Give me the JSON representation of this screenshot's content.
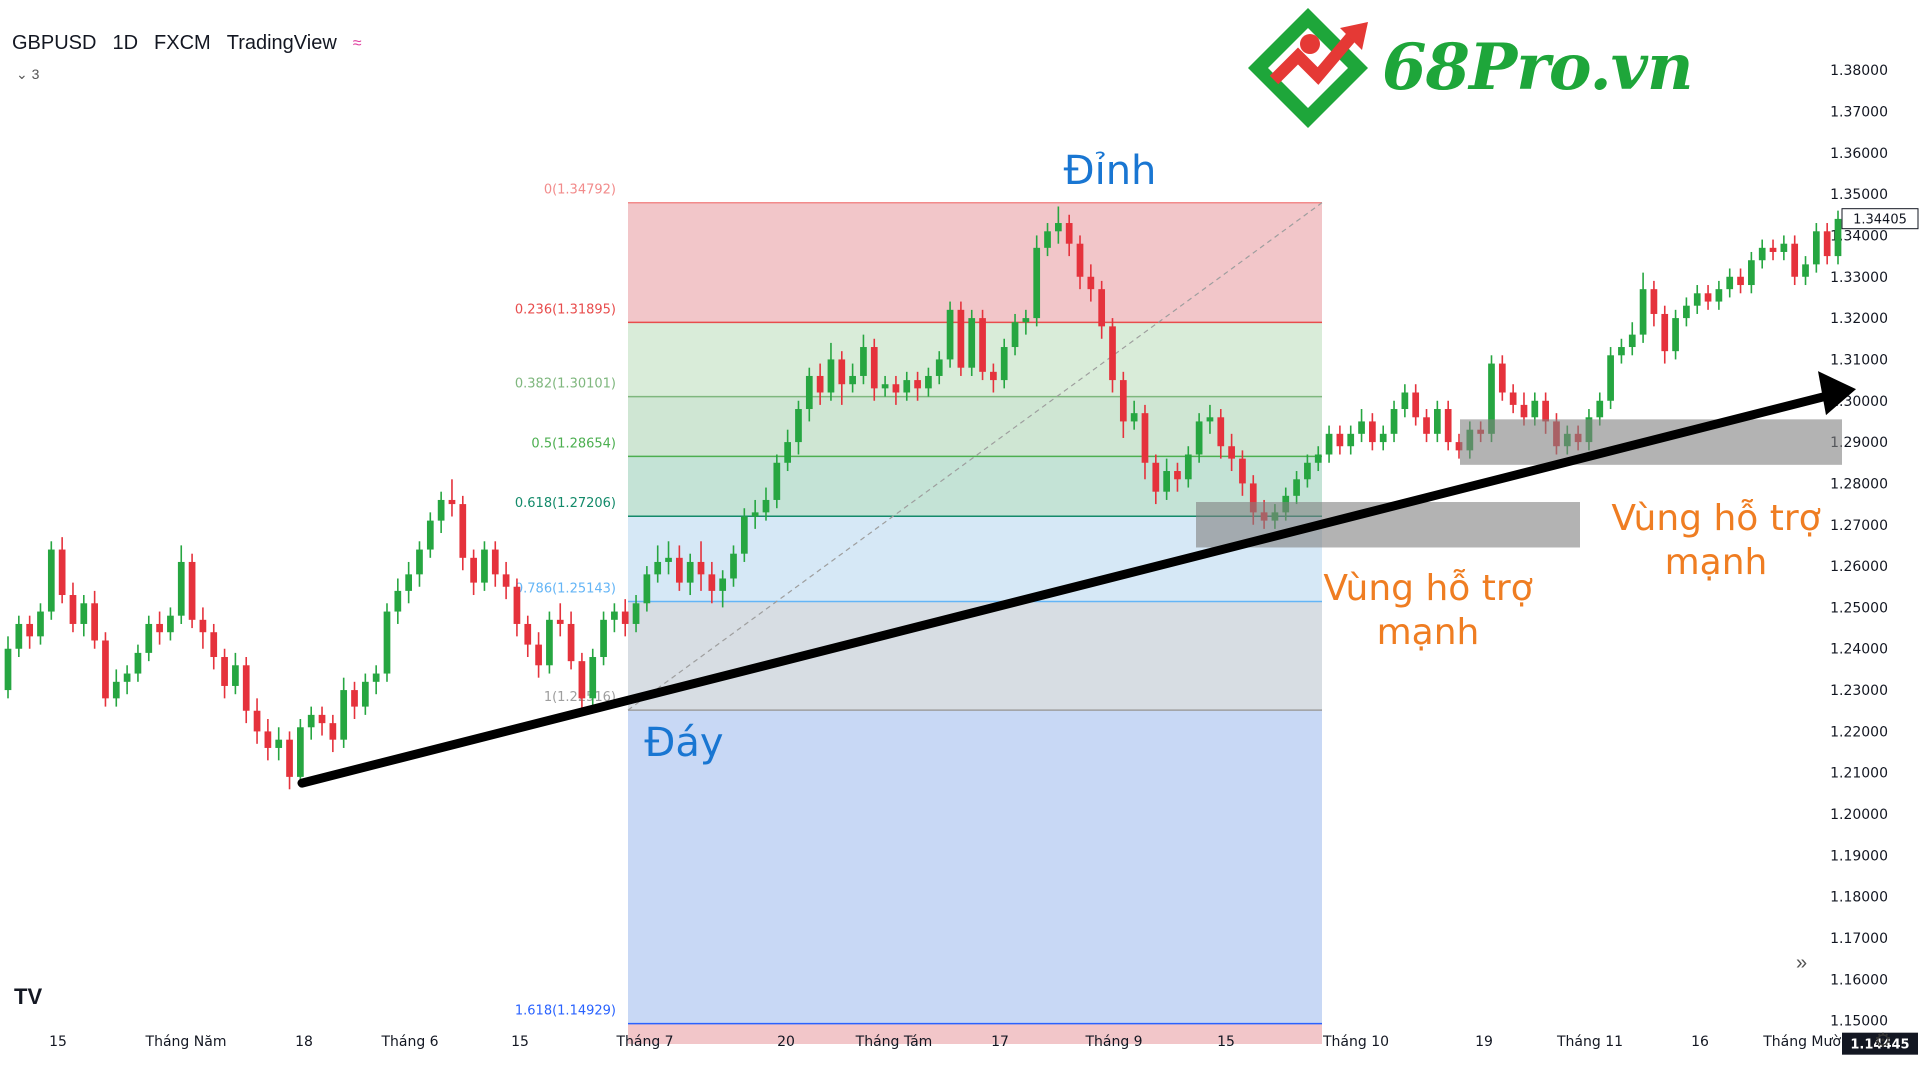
{
  "header": {
    "symbol": "GBPUSD",
    "interval": "1D",
    "broker": "FXCM",
    "source": "TradingView",
    "wave_icon": "≈",
    "indicators_count": "3"
  },
  "logo": {
    "text": "68Pro.vn"
  },
  "watermark": "TV",
  "chart_data": {
    "type": "candlestick",
    "yticks": [
      1.38,
      1.37,
      1.36,
      1.35,
      1.34,
      1.33,
      1.32,
      1.31,
      1.3,
      1.29,
      1.28,
      1.27,
      1.26,
      1.25,
      1.24,
      1.23,
      1.22,
      1.21,
      1.2,
      1.19,
      1.18,
      1.17,
      1.16,
      1.15
    ],
    "ylim": [
      1.1405,
      1.3868
    ],
    "current_price": "1.34405",
    "crosshair_price": "1.14445",
    "xlabels": [
      "15",
      "Tháng Năm",
      "18",
      "Tháng 6",
      "15",
      "Tháng 7",
      "20",
      "Tháng Tám",
      "17",
      "Tháng 9",
      "15",
      "Tháng 10",
      "19",
      "Tháng 11",
      "16",
      "Tháng Mười"
    ],
    "fib_levels": [
      {
        "label": "0(1.34792)",
        "ratio": 0,
        "price": 1.34792,
        "color": "#f28b8b"
      },
      {
        "label": "0.236(1.31895)",
        "ratio": 0.236,
        "price": 1.31895,
        "color": "#e84c4c"
      },
      {
        "label": "0.382(1.30101)",
        "ratio": 0.382,
        "price": 1.30101,
        "color": "#7fb77e"
      },
      {
        "label": "0.5(1.28654)",
        "ratio": 0.5,
        "price": 1.28654,
        "color": "#4caf50"
      },
      {
        "label": "0.618(1.27206)",
        "ratio": 0.618,
        "price": 1.27206,
        "color": "#138a6a"
      },
      {
        "label": "0.786(1.25143)",
        "ratio": 0.786,
        "price": 1.25143,
        "color": "#64b5f6"
      },
      {
        "label": "1(1.22516)",
        "ratio": 1,
        "price": 1.22516,
        "color": "#9e9e9e"
      },
      {
        "label": "1.618(1.14929)",
        "ratio": 1.618,
        "price": 1.14929,
        "color": "#2962ff"
      }
    ],
    "annotations": {
      "top": "Đỉnh",
      "bottom": "Đáy",
      "support1": "Vùng hỗ trợ mạnh",
      "support2": "Vùng hỗ trợ mạnh"
    },
    "support_zones": [
      {
        "price_top": 1.2755,
        "price_bottom": 1.2645
      },
      {
        "price_top": 1.2955,
        "price_bottom": 1.2845
      }
    ],
    "trendline": {
      "from_price": 1.2075,
      "to_price": 1.3028
    },
    "candles": [
      [
        1.23,
        1.24,
        1.243,
        1.228
      ],
      [
        1.24,
        1.246,
        1.248,
        1.238
      ],
      [
        1.246,
        1.243,
        1.248,
        1.24
      ],
      [
        1.243,
        1.249,
        1.251,
        1.241
      ],
      [
        1.249,
        1.264,
        1.266,
        1.247
      ],
      [
        1.264,
        1.253,
        1.267,
        1.251
      ],
      [
        1.253,
        1.246,
        1.256,
        1.244
      ],
      [
        1.246,
        1.251,
        1.253,
        1.243
      ],
      [
        1.251,
        1.242,
        1.254,
        1.24
      ],
      [
        1.242,
        1.228,
        1.244,
        1.226
      ],
      [
        1.228,
        1.232,
        1.235,
        1.226
      ],
      [
        1.232,
        1.234,
        1.236,
        1.229
      ],
      [
        1.234,
        1.239,
        1.241,
        1.232
      ],
      [
        1.239,
        1.246,
        1.248,
        1.237
      ],
      [
        1.246,
        1.244,
        1.249,
        1.241
      ],
      [
        1.244,
        1.248,
        1.25,
        1.242
      ],
      [
        1.248,
        1.261,
        1.265,
        1.246
      ],
      [
        1.261,
        1.247,
        1.263,
        1.245
      ],
      [
        1.247,
        1.244,
        1.25,
        1.24
      ],
      [
        1.244,
        1.238,
        1.246,
        1.235
      ],
      [
        1.238,
        1.231,
        1.24,
        1.228
      ],
      [
        1.231,
        1.236,
        1.239,
        1.229
      ],
      [
        1.236,
        1.225,
        1.238,
        1.222
      ],
      [
        1.225,
        1.22,
        1.228,
        1.217
      ],
      [
        1.22,
        1.216,
        1.223,
        1.213
      ],
      [
        1.216,
        1.218,
        1.221,
        1.213
      ],
      [
        1.218,
        1.209,
        1.22,
        1.206
      ],
      [
        1.209,
        1.221,
        1.223,
        1.207
      ],
      [
        1.221,
        1.224,
        1.226,
        1.218
      ],
      [
        1.224,
        1.222,
        1.226,
        1.219
      ],
      [
        1.222,
        1.218,
        1.224,
        1.215
      ],
      [
        1.218,
        1.23,
        1.233,
        1.216
      ],
      [
        1.23,
        1.226,
        1.232,
        1.223
      ],
      [
        1.226,
        1.232,
        1.234,
        1.224
      ],
      [
        1.232,
        1.234,
        1.236,
        1.229
      ],
      [
        1.234,
        1.249,
        1.251,
        1.232
      ],
      [
        1.249,
        1.254,
        1.257,
        1.246
      ],
      [
        1.254,
        1.258,
        1.261,
        1.251
      ],
      [
        1.258,
        1.264,
        1.266,
        1.255
      ],
      [
        1.264,
        1.271,
        1.273,
        1.262
      ],
      [
        1.271,
        1.276,
        1.278,
        1.268
      ],
      [
        1.276,
        1.275,
        1.281,
        1.272
      ],
      [
        1.275,
        1.262,
        1.277,
        1.259
      ],
      [
        1.262,
        1.256,
        1.264,
        1.253
      ],
      [
        1.256,
        1.264,
        1.266,
        1.254
      ],
      [
        1.264,
        1.258,
        1.266,
        1.255
      ],
      [
        1.258,
        1.255,
        1.261,
        1.252
      ],
      [
        1.255,
        1.246,
        1.257,
        1.243
      ],
      [
        1.246,
        1.241,
        1.248,
        1.238
      ],
      [
        1.241,
        1.236,
        1.244,
        1.233
      ],
      [
        1.236,
        1.247,
        1.249,
        1.234
      ],
      [
        1.247,
        1.246,
        1.251,
        1.243
      ],
      [
        1.246,
        1.237,
        1.249,
        1.235
      ],
      [
        1.237,
        1.228,
        1.239,
        1.225
      ],
      [
        1.228,
        1.238,
        1.24,
        1.226
      ],
      [
        1.238,
        1.247,
        1.249,
        1.236
      ],
      [
        1.247,
        1.249,
        1.251,
        1.244
      ],
      [
        1.249,
        1.246,
        1.252,
        1.243
      ],
      [
        1.246,
        1.251,
        1.253,
        1.244
      ],
      [
        1.251,
        1.258,
        1.26,
        1.249
      ],
      [
        1.258,
        1.261,
        1.265,
        1.256
      ],
      [
        1.261,
        1.262,
        1.266,
        1.258
      ],
      [
        1.262,
        1.256,
        1.265,
        1.254
      ],
      [
        1.256,
        1.261,
        1.263,
        1.253
      ],
      [
        1.261,
        1.258,
        1.266,
        1.254
      ],
      [
        1.258,
        1.254,
        1.261,
        1.251
      ],
      [
        1.254,
        1.257,
        1.259,
        1.25
      ],
      [
        1.257,
        1.263,
        1.265,
        1.255
      ],
      [
        1.263,
        1.272,
        1.274,
        1.261
      ],
      [
        1.272,
        1.273,
        1.276,
        1.269
      ],
      [
        1.273,
        1.276,
        1.279,
        1.271
      ],
      [
        1.276,
        1.285,
        1.287,
        1.274
      ],
      [
        1.285,
        1.29,
        1.293,
        1.283
      ],
      [
        1.29,
        1.298,
        1.3,
        1.287
      ],
      [
        1.298,
        1.306,
        1.308,
        1.295
      ],
      [
        1.306,
        1.302,
        1.309,
        1.299
      ],
      [
        1.302,
        1.31,
        1.314,
        1.3
      ],
      [
        1.31,
        1.304,
        1.312,
        1.299
      ],
      [
        1.304,
        1.306,
        1.309,
        1.302
      ],
      [
        1.306,
        1.313,
        1.316,
        1.304
      ],
      [
        1.313,
        1.303,
        1.315,
        1.3
      ],
      [
        1.303,
        1.304,
        1.306,
        1.301
      ],
      [
        1.304,
        1.302,
        1.306,
        1.299
      ],
      [
        1.302,
        1.305,
        1.307,
        1.3
      ],
      [
        1.305,
        1.303,
        1.307,
        1.3
      ],
      [
        1.303,
        1.306,
        1.308,
        1.301
      ],
      [
        1.306,
        1.31,
        1.312,
        1.304
      ],
      [
        1.31,
        1.322,
        1.324,
        1.308
      ],
      [
        1.322,
        1.308,
        1.324,
        1.306
      ],
      [
        1.308,
        1.32,
        1.322,
        1.306
      ],
      [
        1.32,
        1.307,
        1.322,
        1.305
      ],
      [
        1.307,
        1.305,
        1.309,
        1.302
      ],
      [
        1.305,
        1.313,
        1.315,
        1.303
      ],
      [
        1.313,
        1.319,
        1.321,
        1.311
      ],
      [
        1.319,
        1.32,
        1.322,
        1.316
      ],
      [
        1.32,
        1.337,
        1.34,
        1.318
      ],
      [
        1.337,
        1.341,
        1.343,
        1.335
      ],
      [
        1.341,
        1.343,
        1.347,
        1.338
      ],
      [
        1.343,
        1.338,
        1.345,
        1.335
      ],
      [
        1.338,
        1.33,
        1.34,
        1.327
      ],
      [
        1.33,
        1.327,
        1.333,
        1.324
      ],
      [
        1.327,
        1.318,
        1.329,
        1.315
      ],
      [
        1.318,
        1.305,
        1.32,
        1.302
      ],
      [
        1.305,
        1.295,
        1.307,
        1.291
      ],
      [
        1.295,
        1.297,
        1.3,
        1.293
      ],
      [
        1.297,
        1.285,
        1.299,
        1.281
      ],
      [
        1.285,
        1.278,
        1.287,
        1.275
      ],
      [
        1.278,
        1.283,
        1.286,
        1.276
      ],
      [
        1.283,
        1.281,
        1.285,
        1.278
      ],
      [
        1.281,
        1.287,
        1.289,
        1.279
      ],
      [
        1.287,
        1.295,
        1.297,
        1.285
      ],
      [
        1.295,
        1.296,
        1.299,
        1.292
      ],
      [
        1.296,
        1.289,
        1.298,
        1.286
      ],
      [
        1.289,
        1.286,
        1.292,
        1.283
      ],
      [
        1.286,
        1.28,
        1.288,
        1.277
      ],
      [
        1.28,
        1.273,
        1.282,
        1.27
      ],
      [
        1.273,
        1.271,
        1.276,
        1.269
      ],
      [
        1.271,
        1.273,
        1.275,
        1.269
      ],
      [
        1.273,
        1.277,
        1.279,
        1.271
      ],
      [
        1.277,
        1.281,
        1.283,
        1.275
      ],
      [
        1.281,
        1.285,
        1.287,
        1.279
      ],
      [
        1.285,
        1.287,
        1.289,
        1.283
      ],
      [
        1.287,
        1.292,
        1.294,
        1.285
      ],
      [
        1.292,
        1.289,
        1.294,
        1.287
      ],
      [
        1.289,
        1.292,
        1.294,
        1.287
      ],
      [
        1.292,
        1.295,
        1.298,
        1.29
      ],
      [
        1.295,
        1.29,
        1.297,
        1.288
      ],
      [
        1.29,
        1.292,
        1.294,
        1.288
      ],
      [
        1.292,
        1.298,
        1.3,
        1.29
      ],
      [
        1.298,
        1.302,
        1.304,
        1.296
      ],
      [
        1.302,
        1.296,
        1.304,
        1.294
      ],
      [
        1.296,
        1.292,
        1.298,
        1.29
      ],
      [
        1.292,
        1.298,
        1.3,
        1.29
      ],
      [
        1.298,
        1.29,
        1.3,
        1.288
      ],
      [
        1.29,
        1.288,
        1.292,
        1.286
      ],
      [
        1.288,
        1.293,
        1.295,
        1.286
      ],
      [
        1.293,
        1.292,
        1.295,
        1.29
      ],
      [
        1.292,
        1.309,
        1.311,
        1.29
      ],
      [
        1.309,
        1.302,
        1.311,
        1.3
      ],
      [
        1.302,
        1.299,
        1.304,
        1.297
      ],
      [
        1.299,
        1.296,
        1.302,
        1.294
      ],
      [
        1.296,
        1.3,
        1.302,
        1.294
      ],
      [
        1.3,
        1.295,
        1.302,
        1.292
      ],
      [
        1.295,
        1.289,
        1.297,
        1.287
      ],
      [
        1.289,
        1.292,
        1.294,
        1.287
      ],
      [
        1.292,
        1.29,
        1.294,
        1.288
      ],
      [
        1.29,
        1.296,
        1.298,
        1.288
      ],
      [
        1.296,
        1.3,
        1.302,
        1.294
      ],
      [
        1.3,
        1.311,
        1.313,
        1.298
      ],
      [
        1.311,
        1.313,
        1.315,
        1.309
      ],
      [
        1.313,
        1.316,
        1.319,
        1.311
      ],
      [
        1.316,
        1.327,
        1.331,
        1.314
      ],
      [
        1.327,
        1.321,
        1.329,
        1.318
      ],
      [
        1.321,
        1.312,
        1.323,
        1.309
      ],
      [
        1.312,
        1.32,
        1.322,
        1.31
      ],
      [
        1.32,
        1.323,
        1.325,
        1.318
      ],
      [
        1.323,
        1.326,
        1.328,
        1.321
      ],
      [
        1.326,
        1.324,
        1.328,
        1.322
      ],
      [
        1.324,
        1.327,
        1.329,
        1.322
      ],
      [
        1.327,
        1.33,
        1.332,
        1.325
      ],
      [
        1.33,
        1.328,
        1.332,
        1.326
      ],
      [
        1.328,
        1.334,
        1.336,
        1.326
      ],
      [
        1.334,
        1.337,
        1.339,
        1.332
      ],
      [
        1.337,
        1.336,
        1.339,
        1.334
      ],
      [
        1.336,
        1.338,
        1.34,
        1.334
      ],
      [
        1.338,
        1.33,
        1.34,
        1.328
      ],
      [
        1.33,
        1.333,
        1.335,
        1.328
      ],
      [
        1.333,
        1.341,
        1.343,
        1.331
      ],
      [
        1.341,
        1.335,
        1.343,
        1.333
      ],
      [
        1.335,
        1.344,
        1.346,
        1.333
      ]
    ]
  }
}
